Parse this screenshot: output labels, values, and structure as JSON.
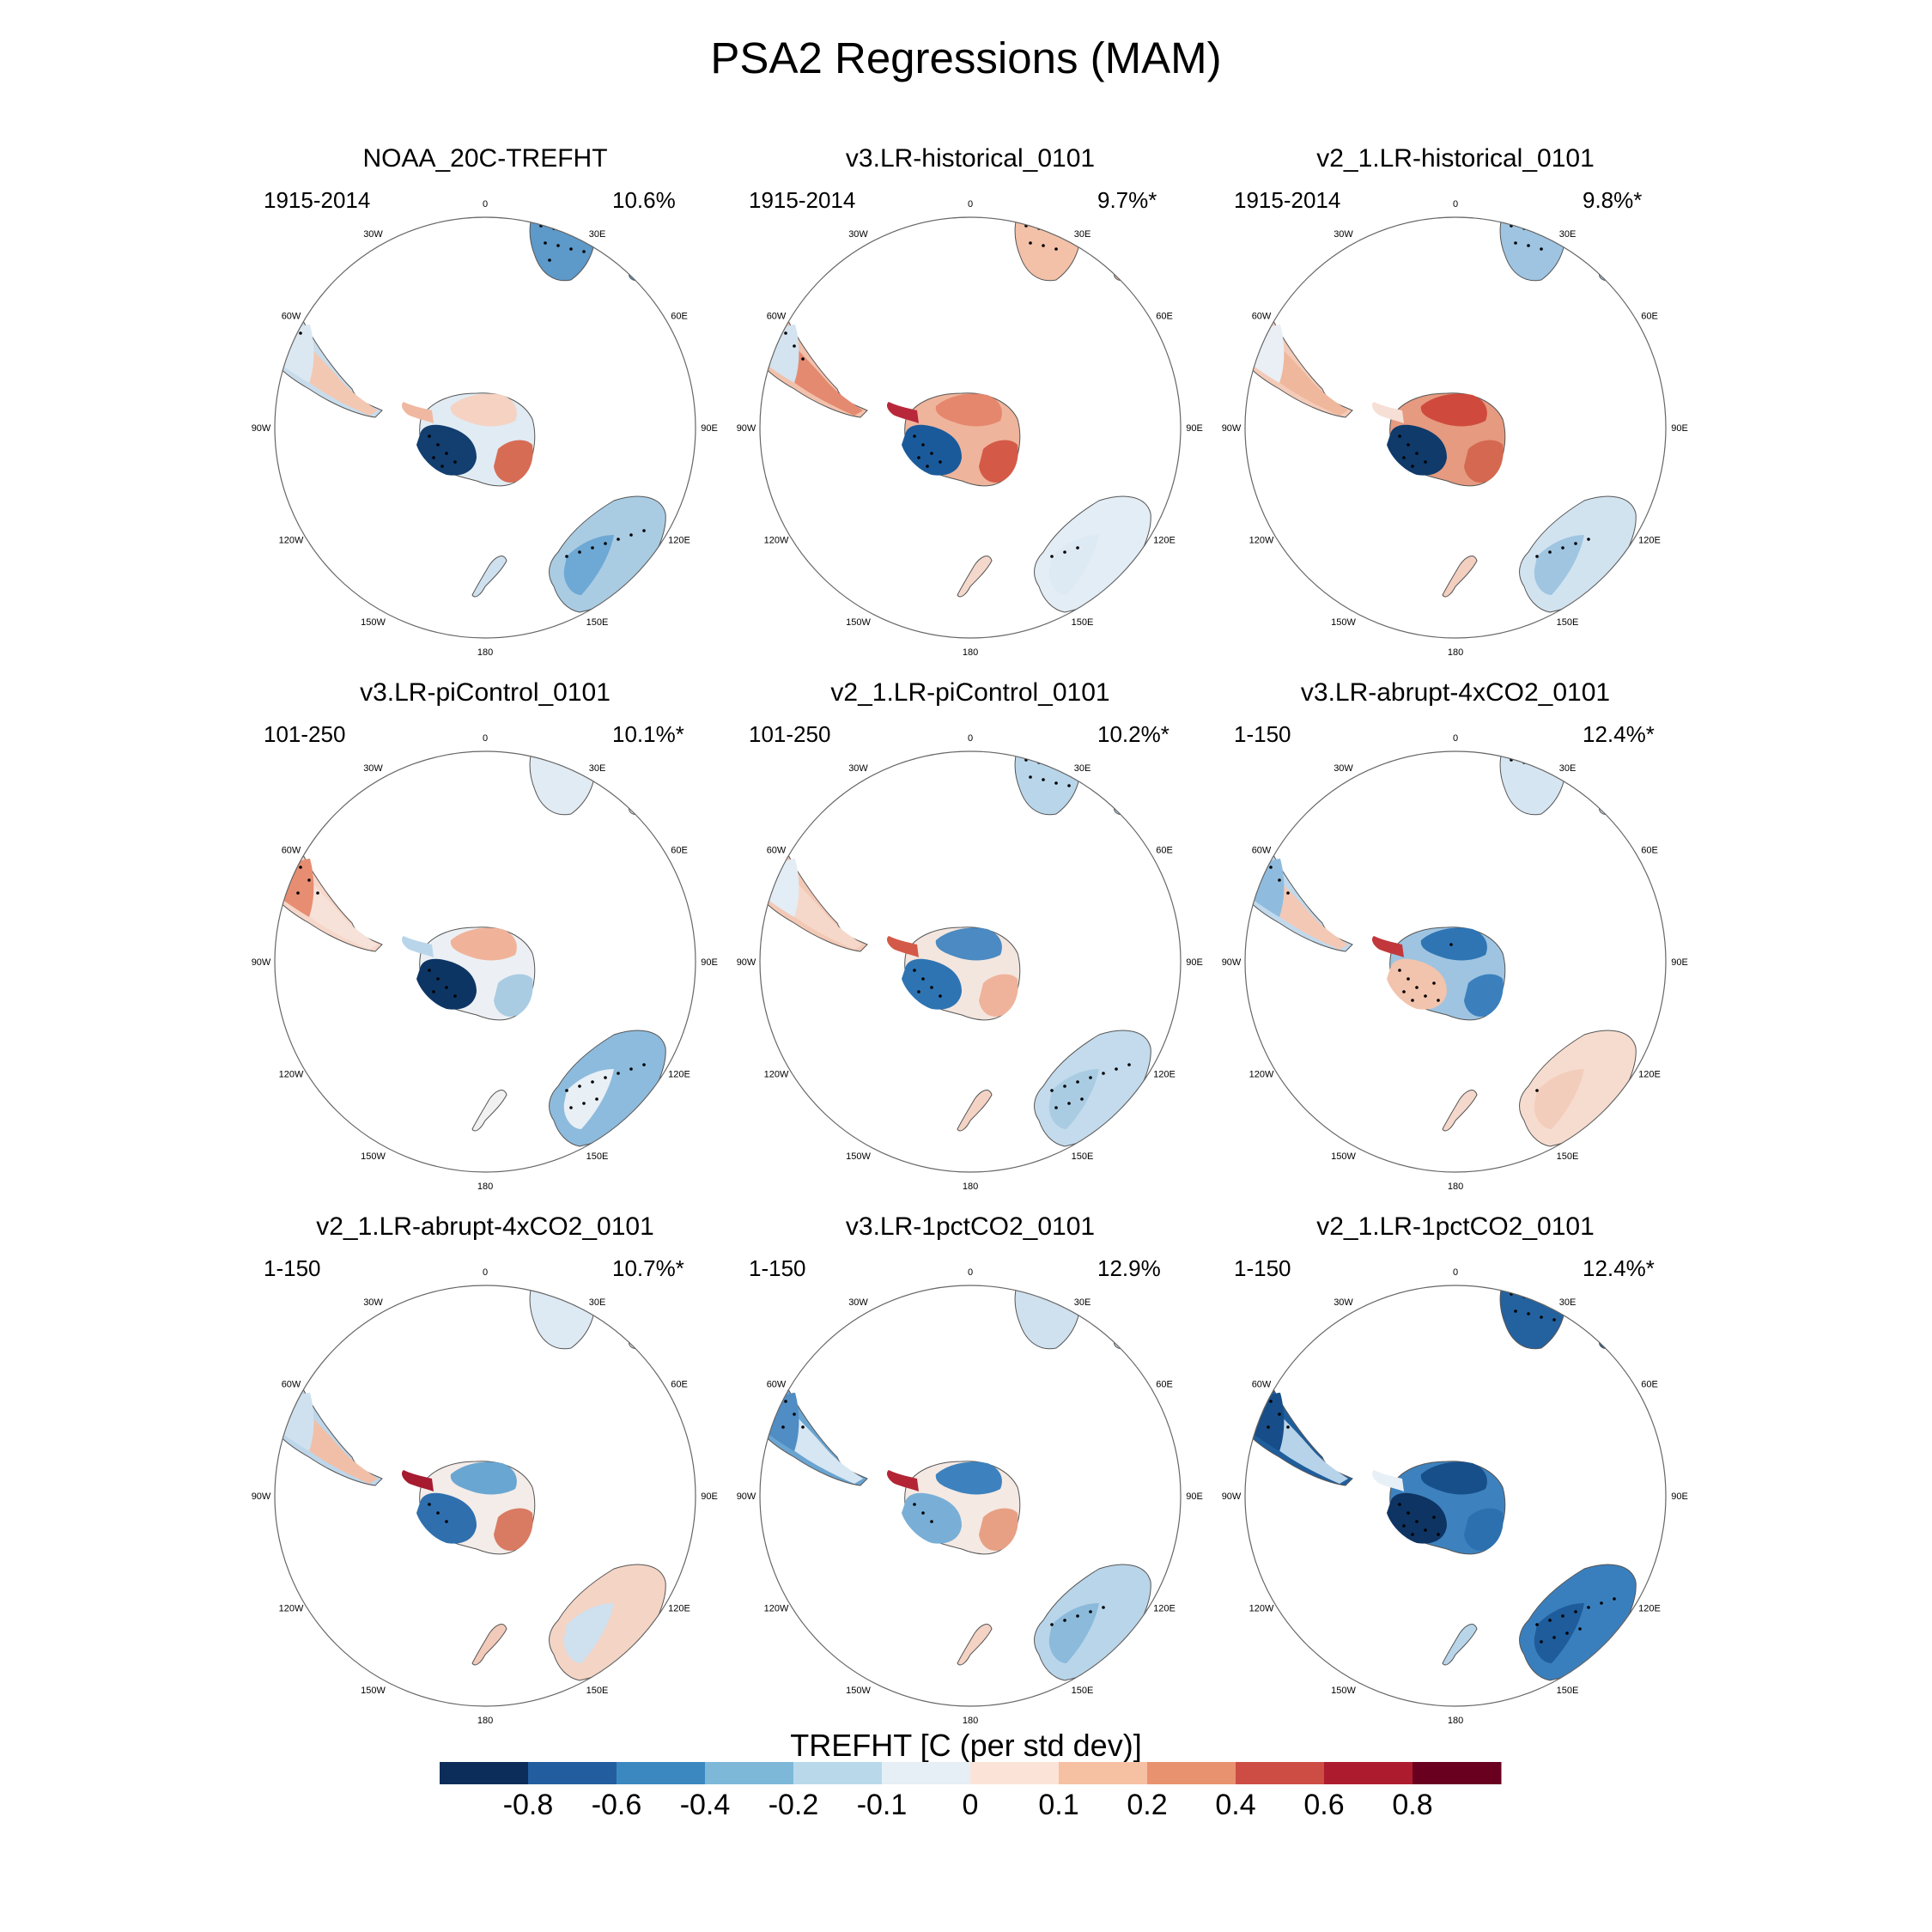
{
  "title": "PSA2 Regressions (MAM)",
  "lon_labels": [
    "0",
    "30E",
    "60E",
    "90E",
    "120E",
    "150E",
    "180",
    "150W",
    "120W",
    "90W",
    "60W",
    "30W"
  ],
  "colors": {
    "ocean": "#ffffff",
    "coast": "#555555",
    "circle": "#666666"
  },
  "panels": [
    {
      "title": "NOAA_20C-TREFHT",
      "years": "1915-2014",
      "pct": "10.6%",
      "regions": {
        "sam": "#c8dceb",
        "sam_s": "#f3c8b3",
        "sam_n": "#dbe8f1",
        "afr": "#5d99c9",
        "aus": "#a9cce3",
        "aus_se": "#6ea8d4",
        "nz": "#cfe0ee",
        "ant": "#e1ebf3",
        "ant_w": "#123e70",
        "ant_e": "#d76c55",
        "ant_n": "#f5d2c2",
        "pen": "#f0b8a0"
      },
      "stipple": {
        "sam": 0.25,
        "afr": 0.7,
        "aus": 0.35,
        "ant": 0.35
      }
    },
    {
      "title": "v3.LR-historical_0101",
      "years": "1915-2014",
      "pct": "9.7%*",
      "regions": {
        "sam": "#f2c1ac",
        "sam_s": "#e48a70",
        "sam_n": "#d3e3ef",
        "afr": "#f3c0a8",
        "aus": "#e3edf5",
        "aus_se": "#dde9f3",
        "nz": "#f4d8cb",
        "ant": "#efb49c",
        "ant_w": "#1b5a9a",
        "ant_e": "#d45a47",
        "ant_n": "#e5876d",
        "pen": "#b8283a"
      },
      "stipple": {
        "sam": 0.55,
        "afr": 0.5,
        "aus": 0.15,
        "ant": 0.35
      }
    },
    {
      "title": "v2_1.LR-historical_0101",
      "years": "1915-2014",
      "pct": "9.8%*",
      "regions": {
        "sam": "#f3cbb8",
        "sam_s": "#efb79c",
        "sam_n": "#e9eff5",
        "afr": "#9ec4e1",
        "aus": "#d2e3f0",
        "aus_se": "#9fc5e1",
        "nz": "#f3cfc0",
        "ant": "#e69a80",
        "ant_w": "#0f3a6a",
        "ant_e": "#d46850",
        "ant_n": "#cf4a3d",
        "pen": "#f6e0d6"
      },
      "stipple": {
        "sam": 0.1,
        "afr": 0.5,
        "aus": 0.25,
        "ant": 0.35
      }
    },
    {
      "title": "v3.LR-piControl_0101",
      "years": "101-250",
      "pct": "10.1%*",
      "regions": {
        "sam": "#f6d7c9",
        "sam_s": "#f6e2d9",
        "sam_n": "#e78d72",
        "afr": "#e1ebf3",
        "aus": "#8dbbdd",
        "aus_se": "#e8eff5",
        "nz": "#f1f1f1",
        "ant": "#ecf0f4",
        "ant_w": "#0d3564",
        "ant_e": "#a9cce3",
        "ant_n": "#f0b39a",
        "pen": "#b9d5ea"
      },
      "stipple": {
        "sam": 0.6,
        "afr": 0.0,
        "aus": 0.5,
        "ant": 0.3
      }
    },
    {
      "title": "v2_1.LR-piControl_0101",
      "years": "101-250",
      "pct": "10.2%*",
      "regions": {
        "sam": "#f3c9b6",
        "sam_s": "#f6d8ca",
        "sam_n": "#e3edf5",
        "afr": "#b9d5ea",
        "aus": "#c3dbec",
        "aus_se": "#a9cce3",
        "nz": "#f4d3c5",
        "ant": "#f3e6df",
        "ant_w": "#2e74b2",
        "ant_e": "#efb39b",
        "ant_n": "#4b8ac2",
        "pen": "#d35a48"
      },
      "stipple": {
        "sam": 0.2,
        "afr": 0.6,
        "aus": 0.55,
        "ant": 0.3
      }
    },
    {
      "title": "v3.LR-abrupt-4xCO2_0101",
      "years": "1-150",
      "pct": "12.4%*",
      "regions": {
        "sam": "#c1d9ec",
        "sam_s": "#f3c9b6",
        "sam_n": "#8fbcde",
        "afr": "#d5e5f1",
        "aus": "#f6dccf",
        "aus_se": "#f3cdbc",
        "nz": "#f4d8cb",
        "ant": "#9ec4e1",
        "ant_w": "#f2c3ad",
        "ant_e": "#3b80bd",
        "ant_n": "#2f75b4",
        "pen": "#c2373b"
      },
      "stipple": {
        "sam": 0.5,
        "afr": 0.2,
        "aus": 0.05,
        "ant": 0.5
      }
    },
    {
      "title": "v2_1.LR-abrupt-4xCO2_0101",
      "years": "1-150",
      "pct": "10.7%*",
      "regions": {
        "sam": "#bdd6ea",
        "sam_s": "#f1bfa8",
        "sam_n": "#cfe1ef",
        "afr": "#dde9f3",
        "aus": "#f4d4c5",
        "aus_se": "#cfe0ee",
        "nz": "#f2cab9",
        "ant": "#f3ece8",
        "ant_w": "#2f6fae",
        "ant_e": "#d97a62",
        "ant_n": "#6aa6d2",
        "pen": "#a61b30"
      },
      "stipple": {
        "sam": 0.0,
        "afr": 0.0,
        "aus": 0.0,
        "ant": 0.15
      }
    },
    {
      "title": "v3.LR-1pctCO2_0101",
      "years": "1-150",
      "pct": "12.9%",
      "regions": {
        "sam": "#6aa4d1",
        "sam_s": "#d6e6f2",
        "sam_n": "#4f8dc4",
        "afr": "#cfe0ee",
        "aus": "#b9d5ea",
        "aus_se": "#8bbadb",
        "nz": "#f4d2c4",
        "ant": "#f5e9e3",
        "ant_w": "#79afd6",
        "ant_e": "#e7a084",
        "ant_n": "#3d82be",
        "pen": "#b32535"
      },
      "stipple": {
        "sam": 0.6,
        "afr": 0.0,
        "aus": 0.25,
        "ant": 0.2
      }
    },
    {
      "title": "v2_1.LR-1pctCO2_0101",
      "years": "1-150",
      "pct": "12.4%*",
      "regions": {
        "sam": "#1f5e9d",
        "sam_s": "#b7d3e9",
        "sam_n": "#174d88",
        "afr": "#23629f",
        "aus": "#3a7fbd",
        "aus_se": "#1e5c9b",
        "nz": "#b9d5ea",
        "ant": "#3d82be",
        "ant_w": "#0e3463",
        "ant_e": "#2d70b0",
        "ant_n": "#174f8b",
        "pen": "#e7f0f6"
      },
      "stipple": {
        "sam": 0.6,
        "afr": 0.6,
        "aus": 0.6,
        "ant": 0.45
      }
    }
  ],
  "colorbar": {
    "title": "TREFHT [C (per std dev)]",
    "colors": [
      "#0c2d5a",
      "#225e9f",
      "#3b88c1",
      "#7eb8d9",
      "#b9d9eb",
      "#e5eff5",
      "#fbe4d7",
      "#f6c0a3",
      "#e9926f",
      "#cd4d45",
      "#ad1c2e",
      "#6a0020"
    ],
    "tick_labels": [
      "-0.8",
      "-0.6",
      "-0.4",
      "-0.2",
      "-0.1",
      "0",
      "0.1",
      "0.2",
      "0.4",
      "0.6",
      "0.8"
    ]
  }
}
